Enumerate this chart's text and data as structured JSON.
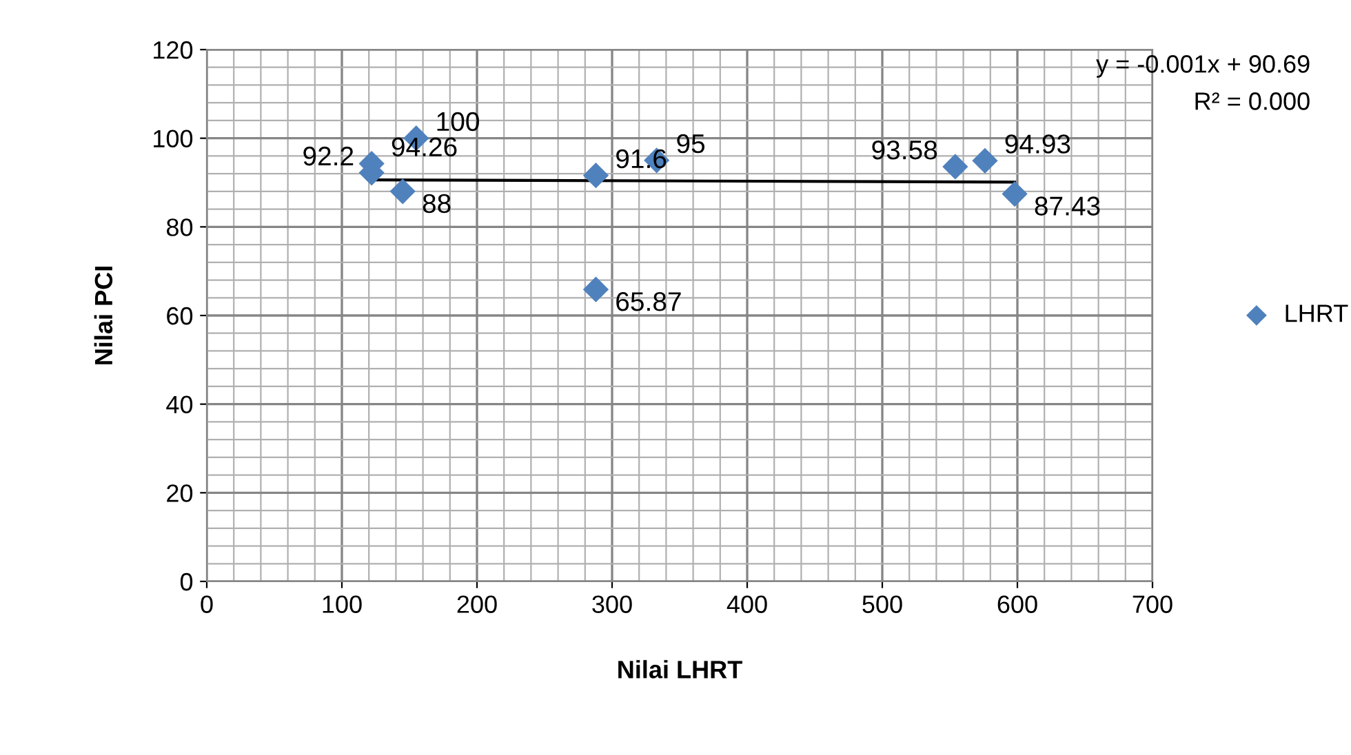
{
  "chart_data": {
    "type": "scatter",
    "xlabel": "Nilai LHRT",
    "ylabel": "Nilai PCI",
    "xlim": [
      0,
      700
    ],
    "xticks": [
      0,
      100,
      200,
      300,
      400,
      500,
      600,
      700
    ],
    "ylim": [
      0,
      120
    ],
    "yticks": [
      0,
      20,
      40,
      60,
      80,
      100,
      120
    ],
    "grid": true,
    "legend": "right",
    "marker": "diamond",
    "series": [
      {
        "name": "LHRT",
        "color": "#4f81bd",
        "x": [
          122,
          122,
          155,
          145,
          288,
          288,
          333,
          554,
          576,
          598
        ],
        "values": [
          94.26,
          92.2,
          100,
          88,
          91.6,
          65.87,
          95,
          93.58,
          94.93,
          87.43
        ],
        "value_labels": [
          "94.26",
          "92.2",
          "100",
          "88",
          "91.6",
          "65.87",
          "95",
          "93.58",
          "94.93",
          "87.43"
        ]
      },
      {
        "type": "line",
        "marker": "none",
        "color": "#000000",
        "x": [
          122,
          598
        ],
        "values": [
          90.6,
          90.1
        ]
      }
    ],
    "annotations": [
      "y = -0.001x + 90.69",
      "R² = 0.000"
    ]
  }
}
